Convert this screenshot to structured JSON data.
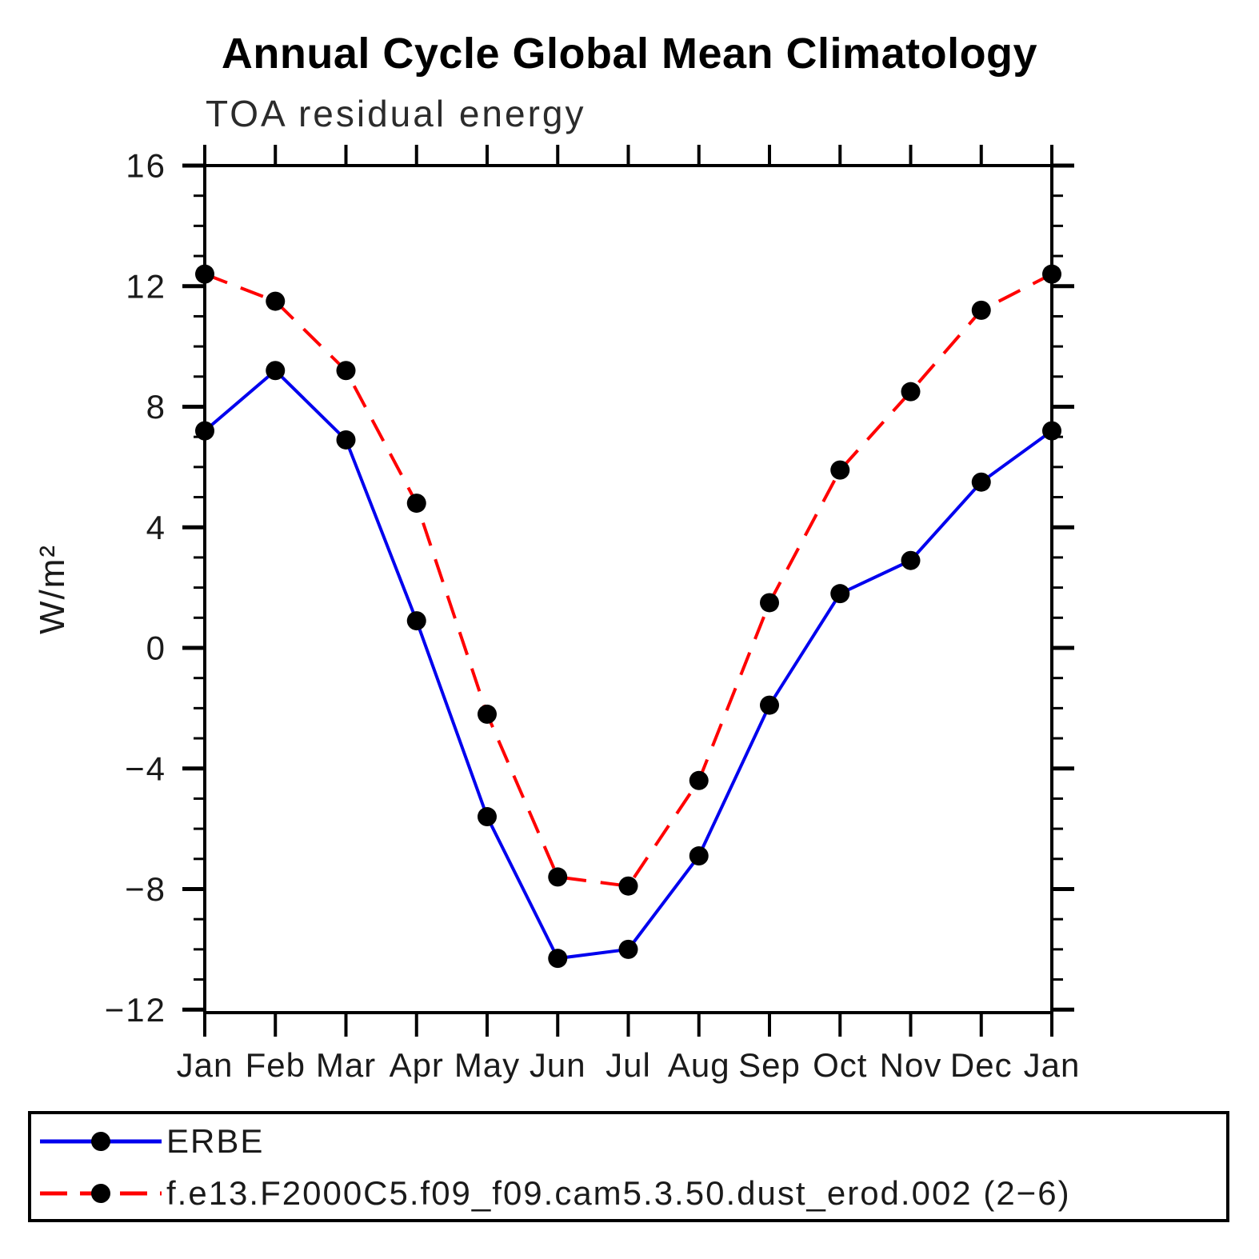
{
  "title": "Annual Cycle Global Mean Climatology",
  "subtitle": "TOA residual energy",
  "chart_data": {
    "type": "line",
    "categories": [
      "Jan",
      "Feb",
      "Mar",
      "Apr",
      "May",
      "Jun",
      "Jul",
      "Aug",
      "Sep",
      "Oct",
      "Nov",
      "Dec",
      "Jan"
    ],
    "xlabel": "",
    "ylabel": "W/m²",
    "ylim": [
      -12.1,
      16
    ],
    "yticks_major": [
      16,
      12,
      8,
      4,
      0,
      -4,
      -8,
      -12
    ],
    "ytick_minor_step": 1,
    "grid": false,
    "legend_position": "bottom-box",
    "marker": {
      "shape": "circle",
      "color": "#000000"
    },
    "axis_color": "#000000",
    "series": [
      {
        "name": "ERBE",
        "line_style": "solid",
        "color": "#0000EE",
        "values": [
          7.2,
          9.2,
          6.9,
          0.9,
          -5.6,
          -10.3,
          -10.0,
          -6.9,
          -1.9,
          1.8,
          2.9,
          5.5,
          7.2
        ]
      },
      {
        "name": "f.e13.F2000C5.f09_f09.cam5.3.50.dust_erod.002 (2−6)",
        "line_style": "dashed",
        "color": "#FF0000",
        "values": [
          12.4,
          11.5,
          9.2,
          4.8,
          -2.2,
          -7.6,
          -7.9,
          -4.4,
          1.5,
          5.9,
          8.5,
          11.2,
          12.4
        ]
      }
    ]
  }
}
